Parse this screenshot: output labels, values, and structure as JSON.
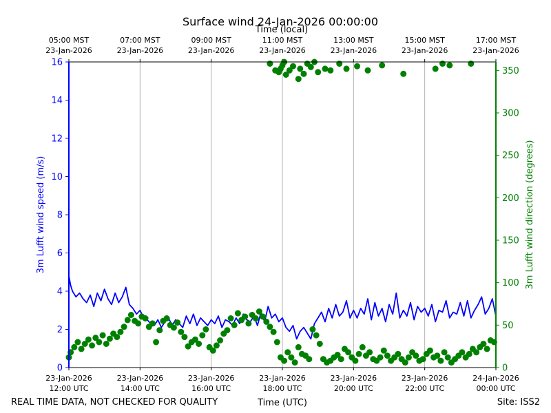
{
  "chart_data": {
    "type": "line+scatter",
    "title": "Surface wind 24-Jan-2026 00:00:00",
    "top_axis_label": "Time (local)",
    "x_label": "Time (UTC)",
    "y_left_label": "3m Lufft wind speed (m/s)",
    "y_right_label": "3m Lufft wind direction (degrees)",
    "footer_left": "REAL TIME DATA, NOT CHECKED FOR QUALITY",
    "footer_right": "Site: ISS2",
    "x_range_hours_utc": [
      12,
      24
    ],
    "y_left_range": [
      0,
      16
    ],
    "y_right_range": [
      0,
      360
    ],
    "bottom_ticks": [
      {
        "hour": 12,
        "date": "23-Jan-2026",
        "time": "12:00 UTC"
      },
      {
        "hour": 14,
        "date": "23-Jan-2026",
        "time": "14:00 UTC"
      },
      {
        "hour": 16,
        "date": "23-Jan-2026",
        "time": "16:00 UTC"
      },
      {
        "hour": 18,
        "date": "23-Jan-2026",
        "time": "18:00 UTC"
      },
      {
        "hour": 20,
        "date": "23-Jan-2026",
        "time": "20:00 UTC"
      },
      {
        "hour": 22,
        "date": "23-Jan-2026",
        "time": "22:00 UTC"
      },
      {
        "hour": 24,
        "date": "24-Jan-2026",
        "time": "00:00 UTC"
      }
    ],
    "top_ticks": [
      {
        "hour": 12,
        "time": "05:00 MST",
        "date": "23-Jan-2026"
      },
      {
        "hour": 14,
        "time": "07:00 MST",
        "date": "23-Jan-2026"
      },
      {
        "hour": 16,
        "time": "09:00 MST",
        "date": "23-Jan-2026"
      },
      {
        "hour": 18,
        "time": "11:00 MST",
        "date": "23-Jan-2026"
      },
      {
        "hour": 20,
        "time": "13:00 MST",
        "date": "23-Jan-2026"
      },
      {
        "hour": 22,
        "time": "15:00 MST",
        "date": "23-Jan-2026"
      },
      {
        "hour": 24,
        "time": "17:00 MST",
        "date": "23-Jan-2026"
      }
    ],
    "y_left_ticks": [
      0,
      2,
      4,
      6,
      8,
      10,
      12,
      14,
      16
    ],
    "y_right_ticks": [
      0,
      50,
      100,
      150,
      200,
      250,
      300,
      350
    ],
    "colors": {
      "speed": "#0000ff",
      "direction": "#008000",
      "grid": "#b0b0b0"
    },
    "series": [
      {
        "name": "3m Lufft wind speed",
        "axis": "left",
        "style": "line",
        "x_hours": [
          12.0,
          12.05,
          12.1,
          12.2,
          12.3,
          12.4,
          12.5,
          12.6,
          12.7,
          12.8,
          12.9,
          13.0,
          13.1,
          13.2,
          13.3,
          13.4,
          13.5,
          13.6,
          13.7,
          13.8,
          13.9,
          14.0,
          14.1,
          14.2,
          14.3,
          14.4,
          14.5,
          14.6,
          14.7,
          14.8,
          14.9,
          15.0,
          15.1,
          15.2,
          15.3,
          15.4,
          15.5,
          15.6,
          15.7,
          15.8,
          15.9,
          16.0,
          16.1,
          16.2,
          16.3,
          16.4,
          16.5,
          16.6,
          16.7,
          16.8,
          16.9,
          17.0,
          17.1,
          17.2,
          17.3,
          17.4,
          17.5,
          17.6,
          17.7,
          17.8,
          17.9,
          18.0,
          18.1,
          18.2,
          18.3,
          18.4,
          18.5,
          18.6,
          18.7,
          18.8,
          18.9,
          19.0,
          19.1,
          19.2,
          19.3,
          19.4,
          19.5,
          19.6,
          19.7,
          19.8,
          19.9,
          20.0,
          20.1,
          20.2,
          20.3,
          20.4,
          20.5,
          20.6,
          20.7,
          20.8,
          20.9,
          21.0,
          21.1,
          21.2,
          21.3,
          21.4,
          21.5,
          21.6,
          21.7,
          21.8,
          21.9,
          22.0,
          22.1,
          22.2,
          22.3,
          22.4,
          22.5,
          22.6,
          22.7,
          22.8,
          22.9,
          23.0,
          23.1,
          23.2,
          23.3,
          23.4,
          23.5,
          23.6,
          23.7,
          23.8,
          23.9,
          24.0
        ],
        "values": [
          4.8,
          4.3,
          4.0,
          3.7,
          3.9,
          3.6,
          3.4,
          3.8,
          3.2,
          3.9,
          3.5,
          4.1,
          3.6,
          3.3,
          3.9,
          3.4,
          3.7,
          4.2,
          3.3,
          3.1,
          2.8,
          3.0,
          2.6,
          2.5,
          2.3,
          2.2,
          2.5,
          2.1,
          2.4,
          2.6,
          2.2,
          2.5,
          2.3,
          2.1,
          2.7,
          2.3,
          2.8,
          2.2,
          2.6,
          2.4,
          2.2,
          2.5,
          2.3,
          2.7,
          2.1,
          2.5,
          2.4,
          2.2,
          2.6,
          2.3,
          2.8,
          2.5,
          2.4,
          2.7,
          2.2,
          2.9,
          2.4,
          3.2,
          2.6,
          2.8,
          2.4,
          2.6,
          2.1,
          1.9,
          2.2,
          1.5,
          1.9,
          2.1,
          1.8,
          1.5,
          2.3,
          2.6,
          2.9,
          2.4,
          3.1,
          2.6,
          3.3,
          2.7,
          2.9,
          3.5,
          2.6,
          3.0,
          2.6,
          3.1,
          2.8,
          3.6,
          2.5,
          3.4,
          2.7,
          3.1,
          2.4,
          3.3,
          2.8,
          3.9,
          2.6,
          3.0,
          2.7,
          3.4,
          2.5,
          3.2,
          2.9,
          3.1,
          2.7,
          3.3,
          2.4,
          3.0,
          2.9,
          3.5,
          2.6,
          2.9,
          2.8,
          3.4,
          2.7,
          3.5,
          2.6,
          3.0,
          3.3,
          3.7,
          2.8,
          3.1,
          3.6,
          2.7
        ]
      },
      {
        "name": "3m Lufft wind direction",
        "axis": "right",
        "style": "markers",
        "x_hours": [
          12.0,
          12.05,
          12.15,
          12.25,
          12.35,
          12.45,
          12.55,
          12.65,
          12.75,
          12.85,
          12.95,
          13.05,
          13.15,
          13.25,
          13.35,
          13.45,
          13.55,
          13.65,
          13.75,
          13.85,
          13.95,
          14.05,
          14.15,
          14.25,
          14.35,
          14.45,
          14.55,
          14.65,
          14.75,
          14.85,
          14.95,
          15.05,
          15.15,
          15.25,
          15.35,
          15.45,
          15.55,
          15.65,
          15.75,
          15.85,
          15.95,
          16.05,
          16.15,
          16.25,
          16.35,
          16.45,
          16.55,
          16.65,
          16.75,
          16.85,
          16.95,
          17.05,
          17.15,
          17.25,
          17.35,
          17.45,
          17.55,
          17.65,
          17.75,
          17.85,
          17.95,
          18.05,
          18.15,
          18.25,
          18.35,
          18.45,
          18.55,
          18.65,
          18.75,
          18.85,
          18.95,
          19.05,
          19.15,
          19.25,
          19.35,
          19.45,
          19.55,
          19.65,
          19.75,
          19.85,
          19.95,
          20.05,
          20.15,
          20.25,
          20.35,
          20.45,
          20.55,
          20.65,
          20.75,
          20.85,
          20.95,
          21.05,
          21.15,
          21.25,
          21.35,
          21.45,
          21.55,
          21.65,
          21.75,
          21.85,
          21.95,
          22.05,
          22.15,
          22.25,
          22.35,
          22.45,
          22.55,
          22.65,
          22.75,
          22.85,
          22.95,
          23.05,
          23.15,
          23.25,
          23.35,
          23.45,
          23.55,
          23.65,
          23.75,
          23.85,
          23.95,
          17.65,
          17.8,
          17.9,
          17.95,
          18.0,
          18.05,
          18.1,
          18.2,
          18.3,
          18.45,
          18.5,
          18.6,
          18.7,
          18.8,
          18.9,
          19.0,
          19.2,
          19.35,
          19.6,
          19.8,
          20.1,
          20.4,
          20.8,
          21.4,
          22.3,
          22.5,
          22.7,
          23.3
        ],
        "values": [
          12,
          18,
          24,
          30,
          22,
          28,
          33,
          26,
          35,
          30,
          38,
          28,
          34,
          40,
          36,
          42,
          48,
          56,
          62,
          55,
          52,
          60,
          58,
          48,
          52,
          30,
          44,
          55,
          58,
          50,
          47,
          53,
          42,
          36,
          25,
          30,
          33,
          28,
          38,
          45,
          24,
          20,
          26,
          32,
          40,
          44,
          58,
          50,
          64,
          56,
          60,
          52,
          62,
          58,
          66,
          60,
          54,
          48,
          42,
          30,
          12,
          8,
          18,
          12,
          6,
          24,
          16,
          14,
          10,
          45,
          38,
          28,
          10,
          6,
          8,
          12,
          15,
          10,
          22,
          18,
          12,
          8,
          16,
          24,
          14,
          18,
          10,
          8,
          12,
          20,
          14,
          8,
          12,
          16,
          10,
          6,
          12,
          18,
          14,
          8,
          10,
          16,
          20,
          12,
          14,
          8,
          18,
          12,
          6,
          10,
          14,
          18,
          12,
          16,
          22,
          18,
          24,
          28,
          22,
          32,
          30,
          358,
          350,
          348,
          352,
          356,
          360,
          345,
          350,
          355,
          340,
          352,
          346,
          358,
          354,
          360,
          348,
          352,
          350,
          358,
          352,
          355,
          350,
          356,
          346,
          352,
          358,
          356,
          358
        ]
      }
    ]
  }
}
